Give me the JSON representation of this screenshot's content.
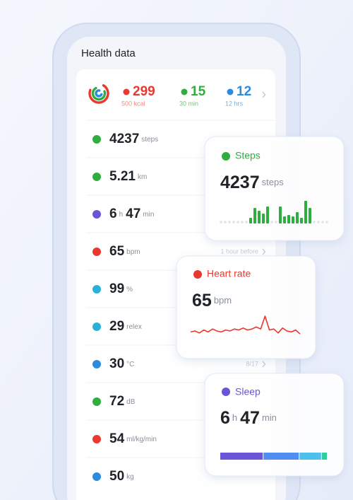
{
  "header": {
    "title": "Health data"
  },
  "summary": [
    {
      "value": 299,
      "sub": "500 kcal",
      "color": "#e8382f",
      "sub_color": "#f08a85"
    },
    {
      "value": 15,
      "sub": "30 min",
      "color": "#2fae3f",
      "sub_color": "#6cc777"
    },
    {
      "value": 12,
      "sub": "12 hrs",
      "color": "#2a8be0",
      "sub_color": "#6fb0ea"
    }
  ],
  "rows": [
    {
      "icon_color": "#2fae3f",
      "parts": [
        {
          "value": 4237,
          "unit": "steps"
        }
      ]
    },
    {
      "icon_color": "#2fae3f",
      "parts": [
        {
          "value": 5.21,
          "unit": "km"
        }
      ]
    },
    {
      "icon_color": "#6a55d8",
      "parts": [
        {
          "value": 6,
          "unit": "h"
        },
        {
          "value": 47,
          "unit": "min"
        }
      ]
    },
    {
      "icon_color": "#e8382f",
      "parts": [
        {
          "value": 65,
          "unit": "bpm"
        }
      ],
      "note": "1 hour before"
    },
    {
      "icon_color": "#2ab0d6",
      "parts": [
        {
          "value": 99,
          "unit": "%"
        }
      ]
    },
    {
      "icon_color": "#2ab0d6",
      "parts": [
        {
          "value": 29,
          "unit": "relex"
        }
      ]
    },
    {
      "icon_color": "#2a8be0",
      "parts": [
        {
          "value": 30,
          "unit": "°C"
        }
      ],
      "note": "8/17"
    },
    {
      "icon_color": "#2fae3f",
      "parts": [
        {
          "value": 72,
          "unit": "dB"
        }
      ]
    },
    {
      "icon_color": "#e8382f",
      "parts": [
        {
          "value": 54,
          "unit": "ml/kg/min"
        }
      ]
    },
    {
      "icon_color": "#2a8be0",
      "parts": [
        {
          "value": 50,
          "unit": "kg"
        }
      ]
    }
  ],
  "cards": {
    "steps": {
      "title": "Steps",
      "color": "#2fae3f",
      "parts": [
        {
          "value": 4237,
          "unit": "steps"
        }
      ],
      "bars": [
        0,
        0,
        0,
        0,
        0,
        0,
        0,
        8,
        22,
        18,
        14,
        24,
        0,
        0,
        24,
        10,
        12,
        10,
        16,
        8,
        32,
        22,
        0,
        0,
        0,
        0
      ]
    },
    "heart_rate": {
      "title": "Heart rate",
      "color": "#e8382f",
      "parts": [
        {
          "value": 65,
          "unit": "bpm"
        }
      ],
      "line": [
        64,
        65,
        63,
        66,
        64,
        67,
        65,
        64,
        66,
        65,
        67,
        66,
        68,
        66,
        67,
        69,
        67,
        80,
        66,
        67,
        63,
        68,
        65,
        64,
        66,
        62
      ]
    },
    "sleep": {
      "title": "Sleep",
      "color": "#6a55d8",
      "parts": [
        {
          "value": 6,
          "unit": "h"
        },
        {
          "value": 47,
          "unit": "min"
        }
      ],
      "stages": [
        {
          "value": 60,
          "color": "#6a55d8"
        },
        {
          "value": 50,
          "color": "#4f8ef0"
        },
        {
          "value": 31,
          "color": "#4ec0ee"
        },
        {
          "value": 8,
          "color": "#2fcf9a"
        }
      ]
    }
  }
}
